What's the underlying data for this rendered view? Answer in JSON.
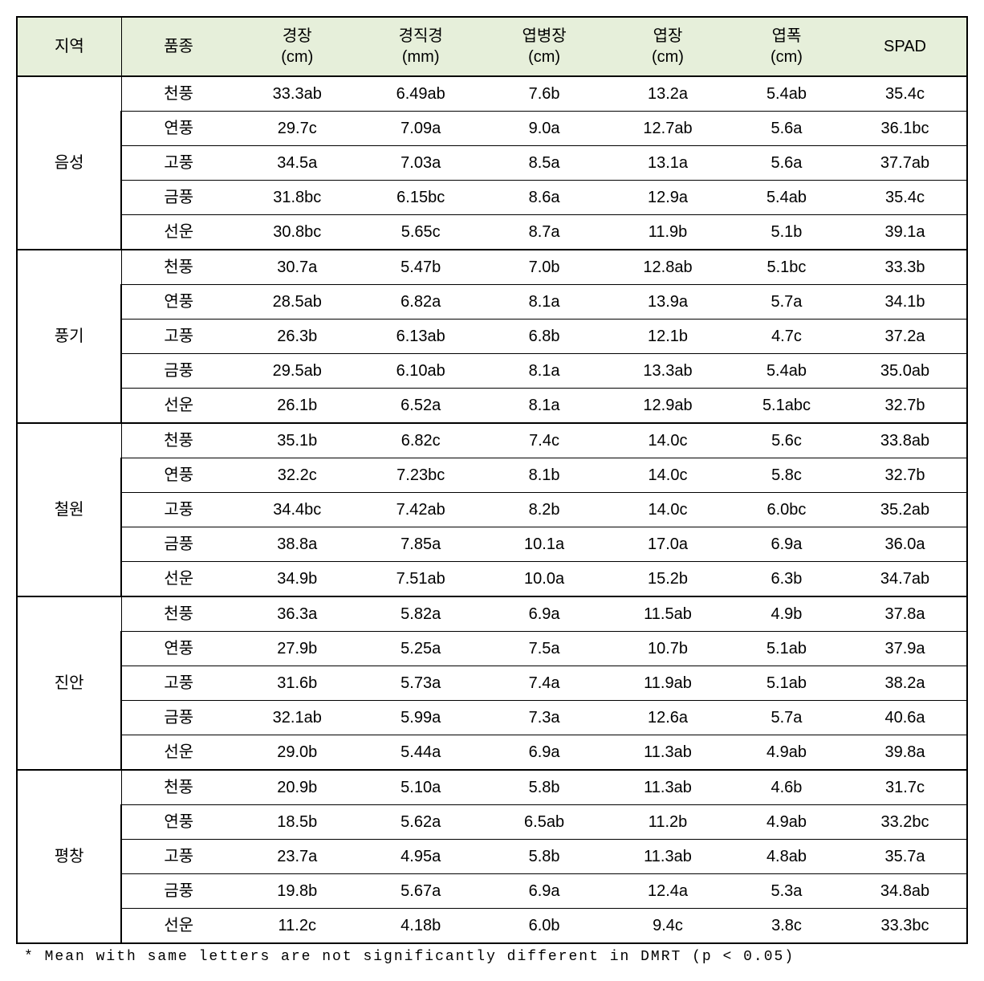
{
  "table": {
    "header_bg": "#e6efda",
    "border_color": "#000000",
    "columns": [
      {
        "label": "지역",
        "unit": ""
      },
      {
        "label": "품종",
        "unit": ""
      },
      {
        "label": "경장",
        "unit": "(cm)"
      },
      {
        "label": "경직경",
        "unit": "(mm)"
      },
      {
        "label": "엽병장",
        "unit": "(cm)"
      },
      {
        "label": "엽장",
        "unit": "(cm)"
      },
      {
        "label": "엽폭",
        "unit": "(cm)"
      },
      {
        "label": "SPAD",
        "unit": ""
      }
    ],
    "regions": [
      {
        "name": "음성",
        "rows": [
          {
            "variety": "천풍",
            "v": [
              "33.3ab",
              "6.49ab",
              "7.6b",
              "13.2a",
              "5.4ab",
              "35.4c"
            ]
          },
          {
            "variety": "연풍",
            "v": [
              "29.7c",
              "7.09a",
              "9.0a",
              "12.7ab",
              "5.6a",
              "36.1bc"
            ]
          },
          {
            "variety": "고풍",
            "v": [
              "34.5a",
              "7.03a",
              "8.5a",
              "13.1a",
              "5.6a",
              "37.7ab"
            ]
          },
          {
            "variety": "금풍",
            "v": [
              "31.8bc",
              "6.15bc",
              "8.6a",
              "12.9a",
              "5.4ab",
              "35.4c"
            ]
          },
          {
            "variety": "선운",
            "v": [
              "30.8bc",
              "5.65c",
              "8.7a",
              "11.9b",
              "5.1b",
              "39.1a"
            ]
          }
        ]
      },
      {
        "name": "풍기",
        "rows": [
          {
            "variety": "천풍",
            "v": [
              "30.7a",
              "5.47b",
              "7.0b",
              "12.8ab",
              "5.1bc",
              "33.3b"
            ]
          },
          {
            "variety": "연풍",
            "v": [
              "28.5ab",
              "6.82a",
              "8.1a",
              "13.9a",
              "5.7a",
              "34.1b"
            ]
          },
          {
            "variety": "고풍",
            "v": [
              "26.3b",
              "6.13ab",
              "6.8b",
              "12.1b",
              "4.7c",
              "37.2a"
            ]
          },
          {
            "variety": "금풍",
            "v": [
              "29.5ab",
              "6.10ab",
              "8.1a",
              "13.3ab",
              "5.4ab",
              "35.0ab"
            ]
          },
          {
            "variety": "선운",
            "v": [
              "26.1b",
              "6.52a",
              "8.1a",
              "12.9ab",
              "5.1abc",
              "32.7b"
            ]
          }
        ]
      },
      {
        "name": "철원",
        "rows": [
          {
            "variety": "천풍",
            "v": [
              "35.1b",
              "6.82c",
              "7.4c",
              "14.0c",
              "5.6c",
              "33.8ab"
            ]
          },
          {
            "variety": "연풍",
            "v": [
              "32.2c",
              "7.23bc",
              "8.1b",
              "14.0c",
              "5.8c",
              "32.7b"
            ]
          },
          {
            "variety": "고풍",
            "v": [
              "34.4bc",
              "7.42ab",
              "8.2b",
              "14.0c",
              "6.0bc",
              "35.2ab"
            ]
          },
          {
            "variety": "금풍",
            "v": [
              "38.8a",
              "7.85a",
              "10.1a",
              "17.0a",
              "6.9a",
              "36.0a"
            ]
          },
          {
            "variety": "선운",
            "v": [
              "34.9b",
              "7.51ab",
              "10.0a",
              "15.2b",
              "6.3b",
              "34.7ab"
            ]
          }
        ]
      },
      {
        "name": "진안",
        "rows": [
          {
            "variety": "천풍",
            "v": [
              "36.3a",
              "5.82a",
              "6.9a",
              "11.5ab",
              "4.9b",
              "37.8a"
            ]
          },
          {
            "variety": "연풍",
            "v": [
              "27.9b",
              "5.25a",
              "7.5a",
              "10.7b",
              "5.1ab",
              "37.9a"
            ]
          },
          {
            "variety": "고풍",
            "v": [
              "31.6b",
              "5.73a",
              "7.4a",
              "11.9ab",
              "5.1ab",
              "38.2a"
            ]
          },
          {
            "variety": "금풍",
            "v": [
              "32.1ab",
              "5.99a",
              "7.3a",
              "12.6a",
              "5.7a",
              "40.6a"
            ]
          },
          {
            "variety": "선운",
            "v": [
              "29.0b",
              "5.44a",
              "6.9a",
              "11.3ab",
              "4.9ab",
              "39.8a"
            ]
          }
        ]
      },
      {
        "name": "평창",
        "rows": [
          {
            "variety": "천풍",
            "v": [
              "20.9b",
              "5.10a",
              "5.8b",
              "11.3ab",
              "4.6b",
              "31.7c"
            ]
          },
          {
            "variety": "연풍",
            "v": [
              "18.5b",
              "5.62a",
              "6.5ab",
              "11.2b",
              "4.9ab",
              "33.2bc"
            ]
          },
          {
            "variety": "고풍",
            "v": [
              "23.7a",
              "4.95a",
              "5.8b",
              "11.3ab",
              "4.8ab",
              "35.7a"
            ]
          },
          {
            "variety": "금풍",
            "v": [
              "19.8b",
              "5.67a",
              "6.9a",
              "12.4a",
              "5.3a",
              "34.8ab"
            ]
          },
          {
            "variety": "선운",
            "v": [
              "11.2c",
              "4.18b",
              "6.0b",
              "9.4c",
              "3.8c",
              "33.3bc"
            ]
          }
        ]
      }
    ]
  },
  "footnote": "* Mean with same letters are not significantly different in DMRT (p < 0.05)"
}
